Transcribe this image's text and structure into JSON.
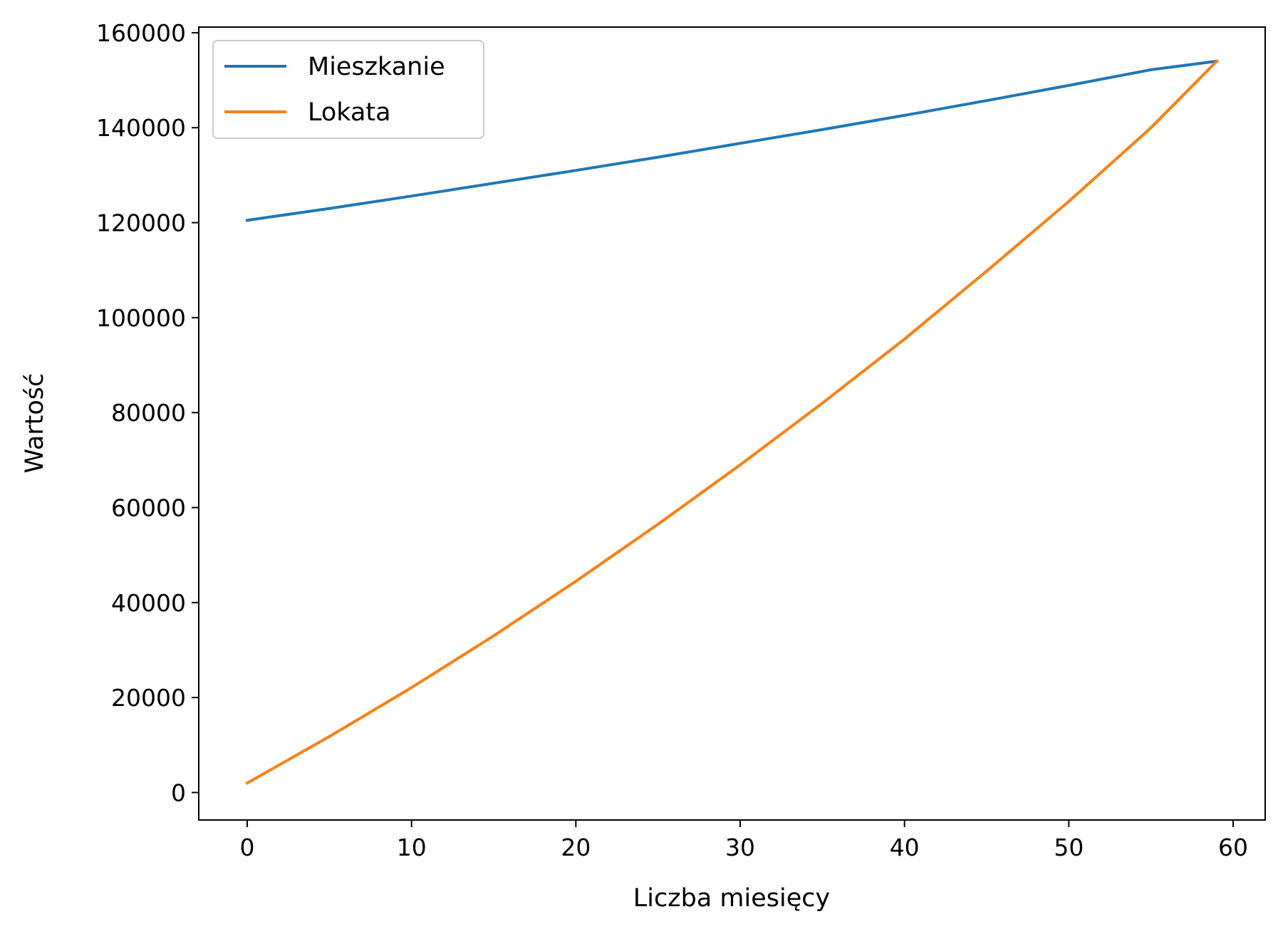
{
  "chart_data": {
    "type": "line",
    "xlabel": "Liczba miesięcy",
    "ylabel": "Wartość",
    "xlim": [
      -2.95,
      61.95
    ],
    "ylim": [
      -5790,
      161190
    ],
    "xticks": [
      0,
      10,
      20,
      30,
      40,
      50,
      60
    ],
    "xtick_labels": [
      "0",
      "10",
      "20",
      "30",
      "40",
      "50",
      "60"
    ],
    "yticks": [
      0,
      20000,
      40000,
      60000,
      80000,
      100000,
      120000,
      140000,
      160000
    ],
    "ytick_labels": [
      "0",
      "20000",
      "40000",
      "60000",
      "80000",
      "100000",
      "120000",
      "140000",
      "160000"
    ],
    "grid": false,
    "legend": {
      "position": "top-left"
    },
    "series": [
      {
        "name": "Mieszkanie",
        "color": "#1f77b4",
        "x": [
          0,
          5,
          10,
          15,
          20,
          25,
          30,
          35,
          40,
          45,
          50,
          55,
          59
        ],
        "y": [
          120500,
          123000,
          125600,
          128300,
          131000,
          133800,
          136700,
          139600,
          142600,
          145700,
          148900,
          152200,
          154000
        ]
      },
      {
        "name": "Lokata",
        "color": "#ff7f0e",
        "x": [
          0,
          5,
          10,
          15,
          20,
          25,
          30,
          35,
          40,
          45,
          50,
          55,
          59
        ],
        "y": [
          2000,
          11800,
          22100,
          33000,
          44500,
          56500,
          69000,
          82000,
          95500,
          109800,
          124500,
          140000,
          154000
        ]
      }
    ]
  }
}
